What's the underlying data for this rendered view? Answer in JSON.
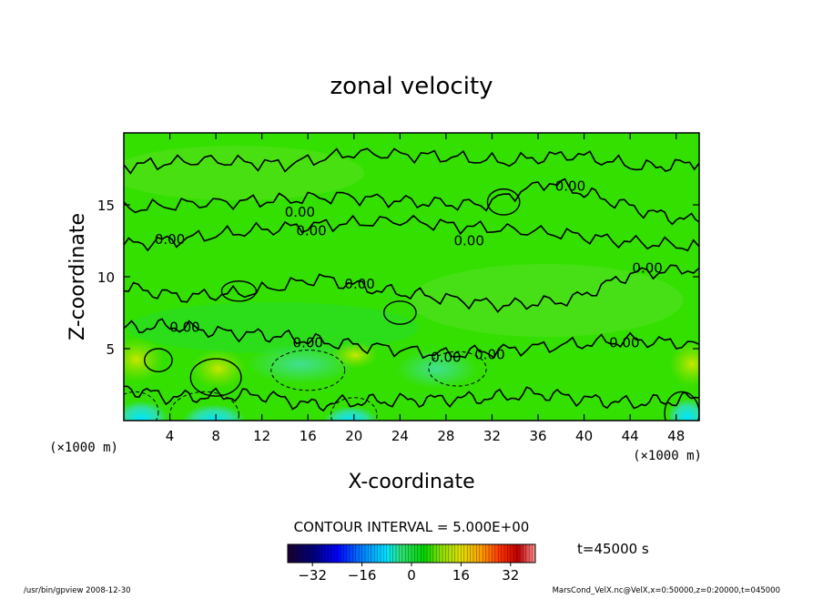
{
  "chart_data": {
    "type": "heatmap",
    "title": "zonal velocity",
    "xlabel": "X-coordinate",
    "ylabel": "Z-coordinate",
    "x_unit_label": "(×1000 m)",
    "y_unit_label": "(×1000 m)",
    "xlim": [
      0,
      50
    ],
    "ylim": [
      0,
      20
    ],
    "x_ticks": [
      4,
      8,
      12,
      16,
      20,
      24,
      28,
      32,
      36,
      40,
      44,
      48
    ],
    "y_ticks": [
      5,
      10,
      15
    ],
    "grid": false,
    "contour_interval_text": "CONTOUR INTERVAL = 5.000E+00",
    "time_text": "t=45000 s",
    "colorbar": {
      "range": [
        -40,
        40
      ],
      "ticks": [
        -32,
        -16,
        0,
        16,
        32
      ],
      "colors": [
        "#1a0033",
        "#00007a",
        "#0000ff",
        "#0080ff",
        "#00e5ff",
        "#30e070",
        "#00d400",
        "#8ce000",
        "#e0e000",
        "#ffa000",
        "#ff3000",
        "#c00000",
        "#ff9090"
      ]
    },
    "contour_labels": [
      {
        "text": "0.00",
        "x": 4.0,
        "y": 12.6
      },
      {
        "text": "0.00",
        "x": 15.3,
        "y": 14.5
      },
      {
        "text": "0.00",
        "x": 16.3,
        "y": 13.2
      },
      {
        "text": "0.00",
        "x": 20.5,
        "y": 9.5
      },
      {
        "text": "0.00",
        "x": 30.0,
        "y": 12.5
      },
      {
        "text": "0.00",
        "x": 38.8,
        "y": 16.3
      },
      {
        "text": "0.00",
        "x": 45.5,
        "y": 10.6
      },
      {
        "text": "0.00",
        "x": 5.3,
        "y": 6.5
      },
      {
        "text": "0.00",
        "x": 16.0,
        "y": 5.4
      },
      {
        "text": "0.00",
        "x": 28.0,
        "y": 4.4
      },
      {
        "text": "0.00",
        "x": 31.8,
        "y": 4.6
      },
      {
        "text": "0.00",
        "x": 43.5,
        "y": 5.4
      }
    ],
    "series": [
      {
        "values": [
          [
            0,
            12.2
          ],
          [
            5,
            12.6
          ],
          [
            11,
            13.2
          ],
          [
            17,
            13.6
          ],
          [
            24,
            13.9
          ],
          [
            31,
            13.4
          ],
          [
            38,
            13.0
          ],
          [
            44,
            12.4
          ],
          [
            50,
            12.1
          ]
        ]
      },
      {
        "values": [
          [
            0,
            14.7
          ],
          [
            6,
            15.1
          ],
          [
            13,
            15.3
          ],
          [
            19,
            15.6
          ],
          [
            25,
            15.2
          ],
          [
            31,
            15.0
          ],
          [
            37,
            16.6
          ],
          [
            41,
            15.6
          ],
          [
            46,
            14.4
          ],
          [
            50,
            13.8
          ]
        ]
      },
      {
        "values": [
          [
            0,
            17.7
          ],
          [
            7,
            18.1
          ],
          [
            14,
            17.8
          ],
          [
            20,
            18.6
          ],
          [
            27,
            18.4
          ],
          [
            33,
            18.0
          ],
          [
            39,
            18.5
          ],
          [
            45,
            17.6
          ],
          [
            50,
            17.9
          ]
        ]
      },
      {
        "values": [
          [
            0,
            9.3
          ],
          [
            5,
            8.6
          ],
          [
            11,
            8.9
          ],
          [
            17,
            9.9
          ],
          [
            22,
            9.1
          ],
          [
            27,
            8.6
          ],
          [
            33,
            8.0
          ],
          [
            39,
            8.4
          ],
          [
            44,
            10.2
          ],
          [
            50,
            10.6
          ]
        ]
      },
      {
        "values": [
          [
            0,
            6.4
          ],
          [
            4,
            6.6
          ],
          [
            9,
            6.1
          ],
          [
            13,
            5.9
          ],
          [
            17,
            5.5
          ],
          [
            22,
            5.1
          ],
          [
            28,
            4.6
          ],
          [
            33,
            4.9
          ],
          [
            39,
            5.3
          ],
          [
            44,
            5.6
          ],
          [
            50,
            5.3
          ]
        ]
      },
      {
        "values": [
          [
            0,
            2.3
          ],
          [
            4,
            1.6
          ],
          [
            8,
            1.7
          ],
          [
            12,
            1.8
          ],
          [
            16,
            1.1
          ],
          [
            20,
            1.3
          ],
          [
            24,
            1.4
          ],
          [
            28,
            1.5
          ],
          [
            32,
            1.6
          ],
          [
            36,
            1.9
          ],
          [
            40,
            1.5
          ],
          [
            44,
            1.2
          ],
          [
            48,
            1.4
          ],
          [
            50,
            1.6
          ]
        ]
      }
    ]
  },
  "footer": {
    "left": "/usr/bin/gpview  2008-12-30",
    "right": "MarsCond_VelX.nc@VelX,x=0:50000,z=0:20000,t=045000"
  }
}
